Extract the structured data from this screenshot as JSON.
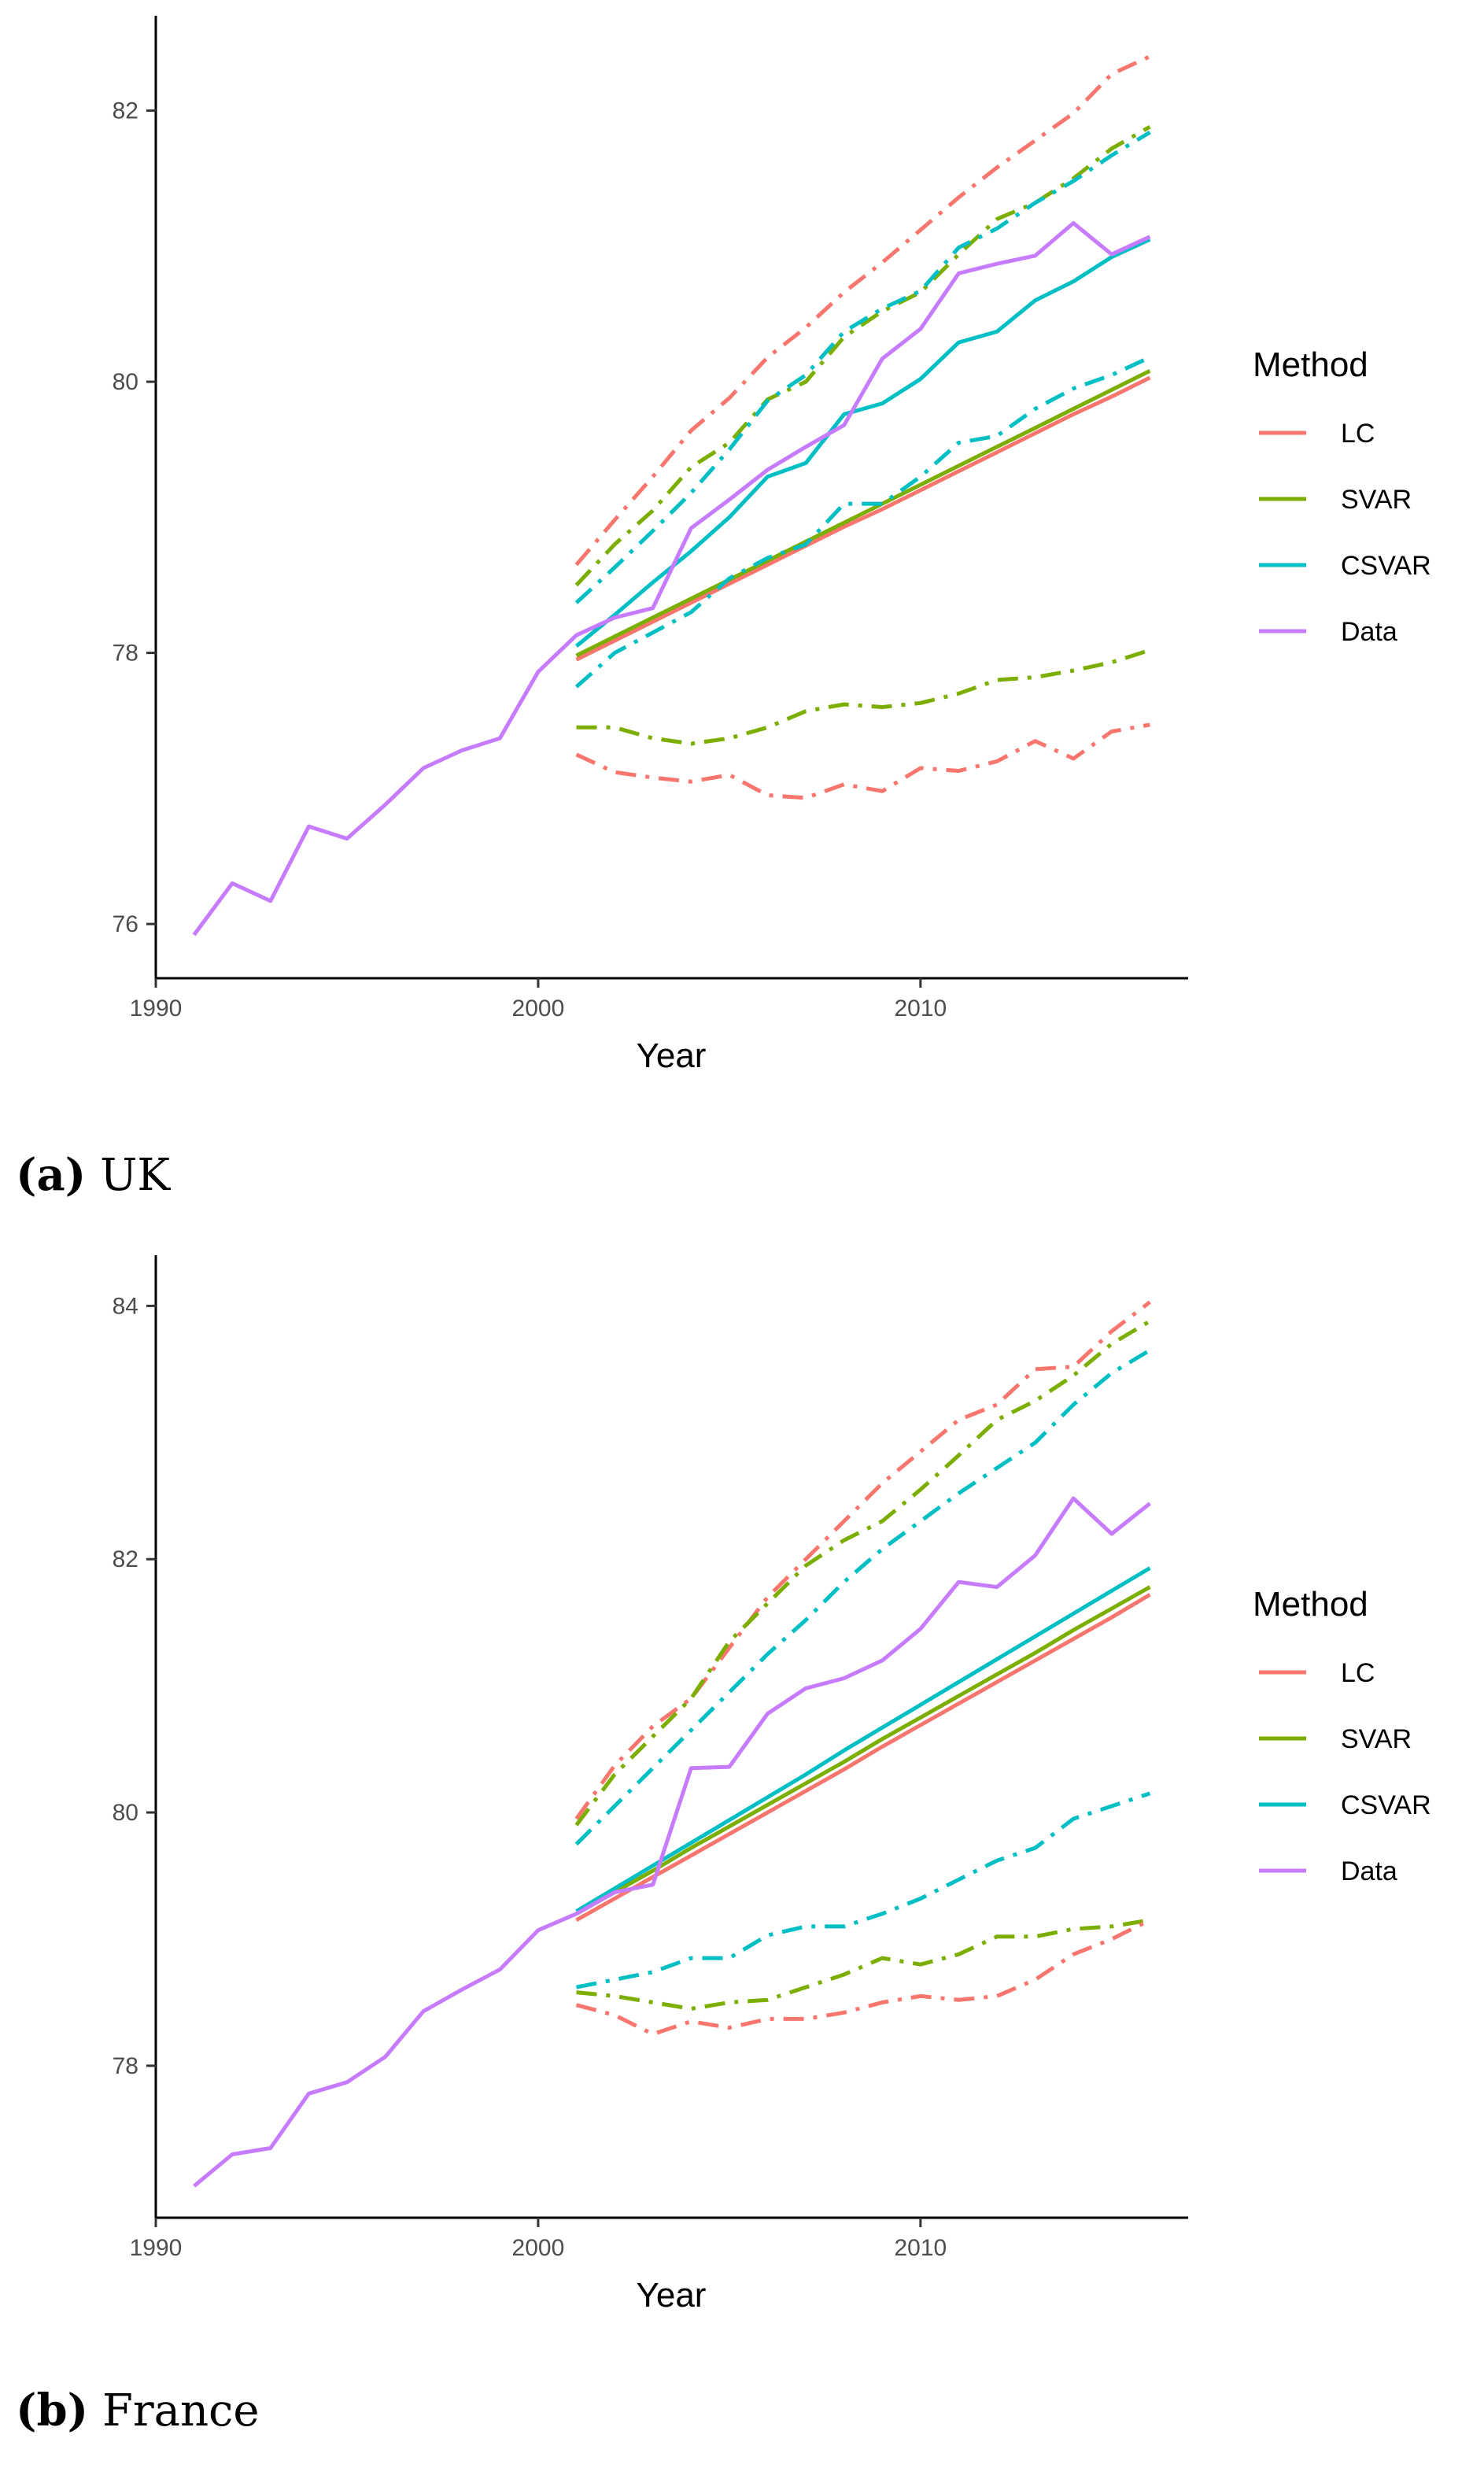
{
  "chart_data": [
    {
      "type": "line",
      "caption_tag": "(a)",
      "caption_text": "UK",
      "xlabel": "Year",
      "ylabel": "",
      "xlim": [
        1990,
        2017
      ],
      "ylim": [
        75.6,
        82.7
      ],
      "xticks": [
        1990,
        2000,
        2010
      ],
      "yticks": [
        76,
        78,
        80,
        82
      ],
      "legend": {
        "title": "Method",
        "position": "right",
        "entries": [
          "LC",
          "SVAR",
          "CSVAR",
          "Data"
        ]
      },
      "colors": {
        "LC": "#F8766D",
        "SVAR": "#7CAE00",
        "CSVAR": "#00BFC4",
        "Data": "#C77CFF"
      },
      "data": {
        "x": [
          1991,
          1992,
          1993,
          1994,
          1995,
          1996,
          1997,
          1998,
          1999,
          2000,
          2001,
          2002,
          2003,
          2004,
          2005,
          2006,
          2007,
          2008,
          2009,
          2010,
          2011,
          2012,
          2013,
          2014,
          2015,
          2016
        ],
        "y": [
          75.92,
          76.3,
          76.17,
          76.72,
          76.63,
          76.88,
          77.15,
          77.28,
          77.37,
          77.86,
          78.13,
          78.26,
          78.33,
          78.92,
          79.13,
          79.35,
          79.52,
          79.68,
          80.17,
          80.39,
          80.8,
          80.87,
          80.93,
          81.17,
          80.94,
          81.07
        ]
      },
      "forecast_x": [
        2001,
        2002,
        2003,
        2004,
        2005,
        2006,
        2007,
        2008,
        2009,
        2010,
        2011,
        2012,
        2013,
        2014,
        2015,
        2016
      ],
      "series": [
        {
          "name": "LC",
          "style": "solid",
          "values": [
            77.95,
            78.09,
            78.23,
            78.37,
            78.51,
            78.65,
            78.79,
            78.93,
            79.06,
            79.2,
            79.34,
            79.48,
            79.62,
            79.76,
            79.89,
            80.03
          ]
        },
        {
          "name": "SVAR",
          "style": "solid",
          "values": [
            77.98,
            78.12,
            78.26,
            78.4,
            78.54,
            78.68,
            78.82,
            78.96,
            79.1,
            79.24,
            79.38,
            79.52,
            79.66,
            79.8,
            79.94,
            80.08
          ]
        },
        {
          "name": "CSVAR",
          "style": "solid",
          "values": [
            78.05,
            78.28,
            78.52,
            78.75,
            79.0,
            79.3,
            79.4,
            79.76,
            79.84,
            80.02,
            80.29,
            80.37,
            80.6,
            80.74,
            80.92,
            81.05
          ]
        },
        {
          "name": "LC",
          "style": "dashdot",
          "values": [
            78.65,
            78.98,
            79.3,
            79.64,
            79.88,
            80.18,
            80.4,
            80.66,
            80.88,
            81.12,
            81.36,
            81.58,
            81.78,
            81.98,
            82.27,
            82.4
          ]
        },
        {
          "name": "SVAR",
          "style": "dashdot",
          "values": [
            78.5,
            78.8,
            79.05,
            79.37,
            79.55,
            79.87,
            80.0,
            80.33,
            80.52,
            80.66,
            80.94,
            81.2,
            81.32,
            81.5,
            81.72,
            81.88
          ]
        },
        {
          "name": "CSVAR",
          "style": "dashdot",
          "values": [
            78.37,
            78.63,
            78.9,
            79.18,
            79.5,
            79.86,
            80.05,
            80.37,
            80.54,
            80.67,
            80.99,
            81.13,
            81.32,
            81.48,
            81.67,
            81.84
          ]
        },
        {
          "name": "CSVAR",
          "style": "dashdot",
          "values": [
            77.75,
            78.0,
            78.15,
            78.3,
            78.55,
            78.7,
            78.8,
            79.1,
            79.1,
            79.3,
            79.55,
            79.6,
            79.8,
            79.95,
            80.05,
            80.18
          ]
        },
        {
          "name": "SVAR",
          "style": "dashdot",
          "values": [
            77.45,
            77.45,
            77.37,
            77.33,
            77.37,
            77.45,
            77.57,
            77.62,
            77.6,
            77.63,
            77.7,
            77.8,
            77.82,
            77.87,
            77.93,
            78.02
          ]
        },
        {
          "name": "LC",
          "style": "dashdot",
          "values": [
            77.25,
            77.12,
            77.08,
            77.05,
            77.1,
            76.95,
            76.93,
            77.03,
            76.98,
            77.15,
            77.13,
            77.2,
            77.35,
            77.22,
            77.42,
            77.47
          ]
        }
      ]
    },
    {
      "type": "line",
      "caption_tag": "(b)",
      "caption_text": "France",
      "xlabel": "Year",
      "ylabel": "",
      "xlim": [
        1990,
        2017
      ],
      "ylim": [
        76.8,
        84.4
      ],
      "xticks": [
        1990,
        2000,
        2010
      ],
      "yticks": [
        78,
        80,
        82,
        84
      ],
      "legend": {
        "title": "Method",
        "position": "right",
        "entries": [
          "LC",
          "SVAR",
          "CSVAR",
          "Data"
        ]
      },
      "colors": {
        "LC": "#F8766D",
        "SVAR": "#7CAE00",
        "CSVAR": "#00BFC4",
        "Data": "#C77CFF"
      },
      "data": {
        "x": [
          1991,
          1992,
          1993,
          1994,
          1995,
          1996,
          1997,
          1998,
          1999,
          2000,
          2001,
          2002,
          2003,
          2004,
          2005,
          2006,
          2007,
          2008,
          2009,
          2010,
          2011,
          2012,
          2013,
          2014,
          2015,
          2016
        ],
        "y": [
          77.05,
          77.3,
          77.35,
          77.78,
          77.87,
          78.07,
          78.43,
          78.6,
          78.76,
          79.07,
          79.2,
          79.37,
          79.43,
          80.35,
          80.36,
          80.78,
          80.98,
          81.06,
          81.2,
          81.45,
          81.82,
          81.78,
          82.03,
          82.48,
          82.2,
          82.44
        ]
      },
      "forecast_x": [
        2001,
        2002,
        2003,
        2004,
        2005,
        2006,
        2007,
        2008,
        2009,
        2010,
        2011,
        2012,
        2013,
        2014,
        2015,
        2016
      ],
      "series": [
        {
          "name": "LC",
          "style": "solid",
          "values": [
            79.15,
            79.32,
            79.49,
            79.66,
            79.83,
            80.0,
            80.17,
            80.34,
            80.52,
            80.69,
            80.86,
            81.03,
            81.2,
            81.37,
            81.54,
            81.72
          ]
        },
        {
          "name": "SVAR",
          "style": "solid",
          "values": [
            79.2,
            79.37,
            79.54,
            79.72,
            79.89,
            80.06,
            80.23,
            80.4,
            80.58,
            80.75,
            80.92,
            81.09,
            81.26,
            81.44,
            81.61,
            81.78
          ]
        },
        {
          "name": "CSVAR",
          "style": "solid",
          "values": [
            79.22,
            79.4,
            79.58,
            79.76,
            79.94,
            80.12,
            80.3,
            80.49,
            80.67,
            80.85,
            81.03,
            81.21,
            81.39,
            81.57,
            81.75,
            81.93
          ]
        },
        {
          "name": "LC",
          "style": "dashdot",
          "values": [
            79.95,
            80.37,
            80.68,
            80.9,
            81.3,
            81.7,
            82.0,
            82.3,
            82.6,
            82.85,
            83.1,
            83.22,
            83.5,
            83.52,
            83.8,
            84.03
          ]
        },
        {
          "name": "SVAR",
          "style": "dashdot",
          "values": [
            79.9,
            80.3,
            80.6,
            80.9,
            81.35,
            81.65,
            81.95,
            82.15,
            82.3,
            82.55,
            82.82,
            83.1,
            83.25,
            83.45,
            83.7,
            83.88
          ]
        },
        {
          "name": "CSVAR",
          "style": "dashdot",
          "values": [
            79.75,
            80.05,
            80.35,
            80.65,
            80.95,
            81.25,
            81.52,
            81.82,
            82.08,
            82.3,
            82.52,
            82.72,
            82.92,
            83.22,
            83.47,
            83.65
          ]
        },
        {
          "name": "CSVAR",
          "style": "dashdot",
          "values": [
            78.62,
            78.68,
            78.74,
            78.85,
            78.85,
            79.03,
            79.1,
            79.1,
            79.2,
            79.32,
            79.47,
            79.62,
            79.72,
            79.95,
            80.05,
            80.15
          ]
        },
        {
          "name": "SVAR",
          "style": "dashdot",
          "values": [
            78.58,
            78.55,
            78.5,
            78.45,
            78.5,
            78.52,
            78.62,
            78.72,
            78.85,
            78.8,
            78.88,
            79.02,
            79.02,
            79.08,
            79.1,
            79.15
          ]
        },
        {
          "name": "LC",
          "style": "dashdot",
          "values": [
            78.48,
            78.4,
            78.25,
            78.35,
            78.3,
            78.37,
            78.37,
            78.42,
            78.5,
            78.55,
            78.52,
            78.55,
            78.68,
            78.88,
            79.0,
            79.15
          ]
        }
      ]
    }
  ]
}
